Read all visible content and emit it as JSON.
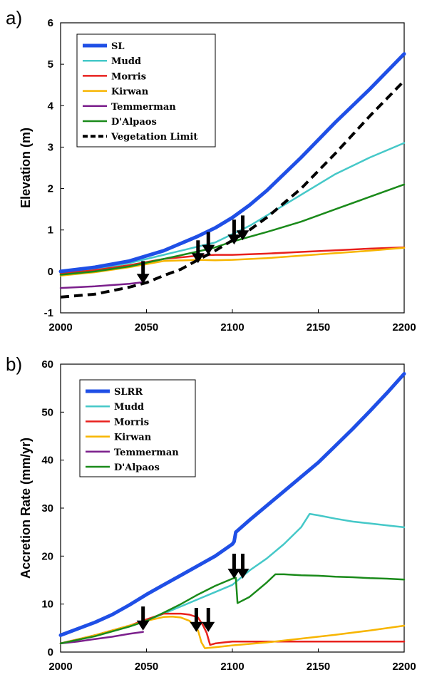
{
  "chart_data": [
    {
      "type": "line",
      "panel_label": "a)",
      "xlabel": "",
      "ylabel": "Elevation (m)",
      "xlim": [
        2000,
        2200
      ],
      "ylim": [
        -1,
        6
      ],
      "xticks": [
        "2000",
        "2050",
        "2100",
        "2150",
        "2200"
      ],
      "yticks": [
        "-1",
        "0",
        "1",
        "2",
        "3",
        "4",
        "5",
        "6"
      ],
      "legend": "top-left",
      "series": [
        {
          "name": "SL",
          "color": "#1f4fe6",
          "width": 5,
          "dash": "",
          "x": [
            2000,
            2020,
            2040,
            2060,
            2080,
            2090,
            2100,
            2110,
            2120,
            2140,
            2160,
            2180,
            2200
          ],
          "y": [
            0.0,
            0.1,
            0.25,
            0.5,
            0.85,
            1.05,
            1.3,
            1.6,
            1.95,
            2.75,
            3.6,
            4.4,
            5.25
          ]
        },
        {
          "name": "Mudd",
          "color": "#45c8c8",
          "width": 2.5,
          "dash": "",
          "x": [
            2000,
            2020,
            2040,
            2060,
            2080,
            2090,
            2100,
            2110,
            2120,
            2140,
            2160,
            2180,
            2200
          ],
          "y": [
            -0.05,
            0.05,
            0.2,
            0.4,
            0.6,
            0.7,
            0.9,
            1.1,
            1.35,
            1.85,
            2.35,
            2.75,
            3.1
          ]
        },
        {
          "name": "Morris",
          "color": "#e8211d",
          "width": 2.5,
          "dash": "",
          "x": [
            2000,
            2020,
            2040,
            2060,
            2080,
            2090,
            2100,
            2120,
            2140,
            2160,
            2180,
            2200
          ],
          "y": [
            -0.05,
            0.03,
            0.15,
            0.3,
            0.38,
            0.4,
            0.4,
            0.43,
            0.47,
            0.51,
            0.55,
            0.58
          ]
        },
        {
          "name": "Kirwan",
          "color": "#f7b500",
          "width": 2.5,
          "dash": "",
          "x": [
            2000,
            2020,
            2040,
            2060,
            2080,
            2090,
            2100,
            2120,
            2140,
            2160,
            2180,
            2200
          ],
          "y": [
            -0.1,
            -0.02,
            0.1,
            0.25,
            0.28,
            0.27,
            0.28,
            0.32,
            0.38,
            0.44,
            0.5,
            0.57
          ]
        },
        {
          "name": "Temmerman",
          "color": "#7b1f8c",
          "width": 2.5,
          "dash": "",
          "x": [
            2000,
            2010,
            2020,
            2030,
            2040,
            2048
          ],
          "y": [
            -0.4,
            -0.38,
            -0.36,
            -0.33,
            -0.3,
            -0.26
          ]
        },
        {
          "name": "D'Alpaos",
          "color": "#1a8a1a",
          "width": 2.5,
          "dash": "",
          "x": [
            2000,
            2020,
            2040,
            2060,
            2080,
            2090,
            2100,
            2120,
            2140,
            2160,
            2180,
            2200
          ],
          "y": [
            -0.08,
            0.0,
            0.12,
            0.3,
            0.48,
            0.58,
            0.72,
            0.95,
            1.2,
            1.5,
            1.8,
            2.1
          ]
        },
        {
          "name": "Vegetation Limit",
          "color": "#000000",
          "width": 4,
          "dash": "12,7",
          "x": [
            2000,
            2020,
            2040,
            2050,
            2060,
            2070,
            2080,
            2090,
            2100,
            2110,
            2120,
            2140,
            2160,
            2180,
            2200
          ],
          "y": [
            -0.62,
            -0.55,
            -0.38,
            -0.27,
            -0.1,
            0.05,
            0.28,
            0.5,
            0.75,
            1.0,
            1.3,
            2.0,
            2.85,
            3.75,
            4.6
          ]
        }
      ],
      "arrows": [
        {
          "x": 2048,
          "y_top": 0.25,
          "y_tip": -0.3
        },
        {
          "x": 2080,
          "y_top": 0.75,
          "y_tip": 0.2
        },
        {
          "x": 2086,
          "y_top": 0.95,
          "y_tip": 0.4
        },
        {
          "x": 2101,
          "y_top": 1.25,
          "y_tip": 0.65
        },
        {
          "x": 2106,
          "y_top": 1.35,
          "y_tip": 0.75
        }
      ]
    },
    {
      "type": "line",
      "panel_label": "b)",
      "xlabel": "",
      "ylabel": "Accretion Rate (mm/yr)",
      "xlim": [
        2000,
        2200
      ],
      "ylim": [
        0,
        60
      ],
      "xticks": [
        "2000",
        "2050",
        "2100",
        "2150",
        "2200"
      ],
      "yticks": [
        "0",
        "10",
        "20",
        "30",
        "40",
        "50",
        "60"
      ],
      "legend": "top-left",
      "series": [
        {
          "name": "SLRR",
          "color": "#1f4fe6",
          "width": 5,
          "dash": "",
          "x": [
            2000,
            2020,
            2030,
            2040,
            2050,
            2060,
            2070,
            2080,
            2090,
            2100,
            2101,
            2102,
            2110,
            2120,
            2130,
            2140,
            2150,
            2160,
            2170,
            2180,
            2190,
            2200
          ],
          "y": [
            3.5,
            6.2,
            7.8,
            9.8,
            12.0,
            14.0,
            16.0,
            18.0,
            20.0,
            22.5,
            23.0,
            25.0,
            27.5,
            30.5,
            33.5,
            36.5,
            39.5,
            43.0,
            46.5,
            50.2,
            54.0,
            58.0
          ]
        },
        {
          "name": "Mudd",
          "color": "#45c8c8",
          "width": 2.5,
          "dash": "",
          "x": [
            2000,
            2020,
            2040,
            2050,
            2060,
            2080,
            2090,
            2100,
            2105,
            2110,
            2120,
            2130,
            2140,
            2145,
            2150,
            2160,
            2170,
            2180,
            2190,
            2200
          ],
          "y": [
            1.8,
            3.5,
            5.5,
            6.5,
            8.0,
            11.0,
            12.5,
            14.0,
            15.5,
            17.0,
            19.5,
            22.5,
            26.0,
            28.8,
            28.5,
            27.8,
            27.2,
            26.8,
            26.4,
            26.0
          ]
        },
        {
          "name": "Morris",
          "color": "#e8211d",
          "width": 2.5,
          "dash": "",
          "x": [
            2000,
            2020,
            2040,
            2050,
            2060,
            2070,
            2075,
            2080,
            2083,
            2085,
            2087,
            2090,
            2095,
            2100,
            2110,
            2120,
            2140,
            2160,
            2180,
            2200
          ],
          "y": [
            1.8,
            3.5,
            5.5,
            6.8,
            8.0,
            8.0,
            7.8,
            7.2,
            5.5,
            4.0,
            1.5,
            1.8,
            2.0,
            2.2,
            2.2,
            2.2,
            2.2,
            2.2,
            2.2,
            2.2
          ]
        },
        {
          "name": "Kirwan",
          "color": "#f7b500",
          "width": 2.5,
          "dash": "",
          "x": [
            2000,
            2020,
            2040,
            2050,
            2060,
            2065,
            2070,
            2075,
            2080,
            2082,
            2084,
            2090,
            2100,
            2120,
            2140,
            2160,
            2180,
            2200
          ],
          "y": [
            1.8,
            3.5,
            5.5,
            6.5,
            7.3,
            7.4,
            7.2,
            6.5,
            4.5,
            2.0,
            0.8,
            1.0,
            1.4,
            2.0,
            2.8,
            3.6,
            4.5,
            5.5
          ]
        },
        {
          "name": "Temmerman",
          "color": "#7b1f8c",
          "width": 2.5,
          "dash": "",
          "x": [
            2000,
            2010,
            2020,
            2030,
            2040,
            2048
          ],
          "y": [
            1.8,
            2.2,
            2.7,
            3.2,
            3.8,
            4.2
          ]
        },
        {
          "name": "D'Alpaos",
          "color": "#1a8a1a",
          "width": 2.5,
          "dash": "",
          "x": [
            2000,
            2020,
            2040,
            2050,
            2060,
            2070,
            2080,
            2090,
            2100,
            2102,
            2103,
            2110,
            2120,
            2125,
            2130,
            2140,
            2150,
            2160,
            2170,
            2180,
            2190,
            2200
          ],
          "y": [
            1.8,
            3.3,
            5.3,
            6.5,
            8.2,
            10.0,
            12.0,
            13.8,
            15.3,
            15.5,
            10.2,
            11.5,
            14.5,
            16.2,
            16.2,
            16.0,
            15.9,
            15.7,
            15.6,
            15.4,
            15.3,
            15.1
          ]
        }
      ],
      "arrows": [
        {
          "x": 2048,
          "y_top": 9.5,
          "y_tip": 4.5
        },
        {
          "x": 2079,
          "y_top": 9.2,
          "y_tip": 4.2
        },
        {
          "x": 2086,
          "y_top": 9.2,
          "y_tip": 4.2
        },
        {
          "x": 2101,
          "y_top": 20.5,
          "y_tip": 15.3
        },
        {
          "x": 2106,
          "y_top": 20.5,
          "y_tip": 15.3
        }
      ]
    }
  ]
}
